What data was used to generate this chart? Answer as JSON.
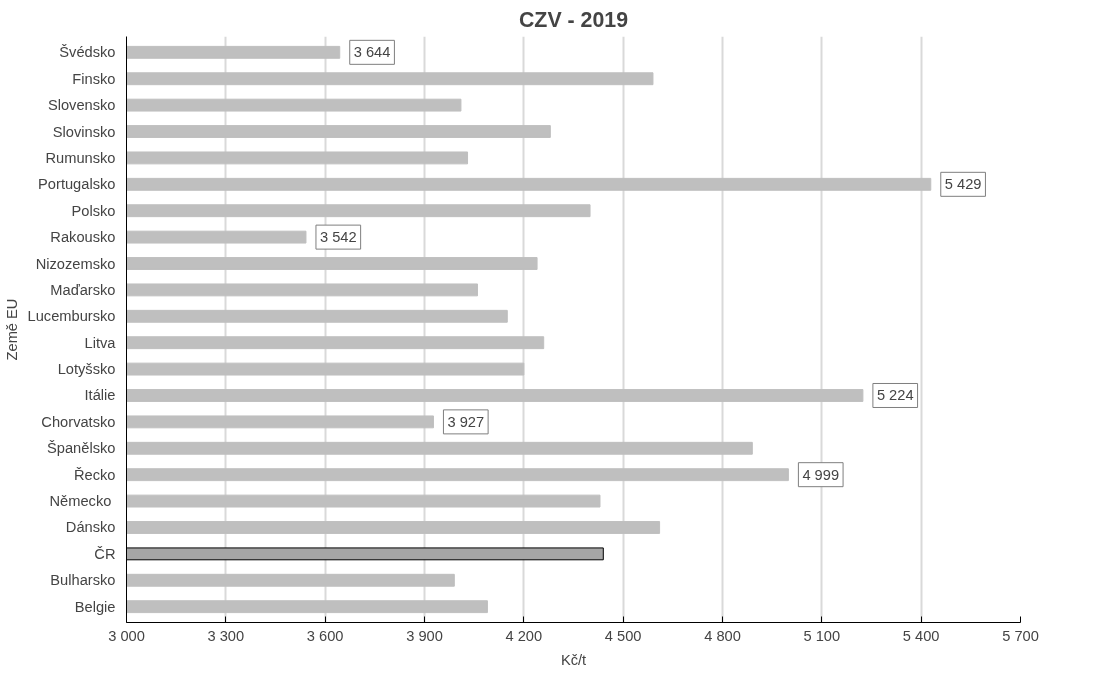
{
  "chart_data": {
    "type": "bar",
    "orientation": "horizontal",
    "title": "CZV - 2019",
    "xlabel": "Kč/t",
    "ylabel": "Země EU",
    "categories": [
      "Švédsko",
      "Finsko",
      "Slovensko",
      "Slovinsko",
      "Rumunsko",
      "Portugalsko",
      "Polsko",
      "Rakousko",
      "Nizozemsko",
      "Maďarsko",
      "Lucembursko",
      "Litva",
      "Lotyšsko",
      "Itálie",
      "Chorvatsko",
      "Španělsko",
      "Řecko",
      "Německo ",
      "Dánsko",
      "ČR",
      "Bulharsko",
      "Belgie"
    ],
    "values": [
      3644,
      4590,
      4010,
      4280,
      4030,
      5429,
      4400,
      3542,
      4240,
      4060,
      4150,
      4260,
      4200,
      5224,
      3927,
      4890,
      4999,
      4430,
      4610,
      4440,
      3990,
      4090
    ],
    "value_labels": [
      "3 644",
      null,
      null,
      null,
      null,
      "5 429",
      null,
      "3 542",
      null,
      null,
      null,
      null,
      null,
      "5 224",
      "3 927",
      null,
      "4 999",
      null,
      null,
      null,
      null,
      null
    ],
    "colors": [
      "#bfbfbf",
      "#bfbfbf",
      "#bfbfbf",
      "#bfbfbf",
      "#bfbfbf",
      "#bfbfbf",
      "#bfbfbf",
      "#bfbfbf",
      "#bfbfbf",
      "#bfbfbf",
      "#bfbfbf",
      "#bfbfbf",
      "#bfbfbf",
      "#bfbfbf",
      "#bfbfbf",
      "#bfbfbf",
      "#bfbfbf",
      "#bfbfbf",
      "#bfbfbf",
      "#a6a6a6",
      "#bfbfbf",
      "#bfbfbf"
    ],
    "xlim": [
      3000,
      5700
    ],
    "xticks": [
      {
        "value": 3000,
        "label": "3 000"
      },
      {
        "value": 3300,
        "label": "3 300"
      },
      {
        "value": 3600,
        "label": "3 600"
      },
      {
        "value": 3900,
        "label": "3 900"
      },
      {
        "value": 4200,
        "label": "4 200"
      },
      {
        "value": 4500,
        "label": "4 500"
      },
      {
        "value": 4800,
        "label": "4 800"
      },
      {
        "value": 5100,
        "label": "5 100"
      },
      {
        "value": 5400,
        "label": "5 400"
      },
      {
        "value": 5700,
        "label": "5 700"
      }
    ],
    "grid": "x"
  }
}
